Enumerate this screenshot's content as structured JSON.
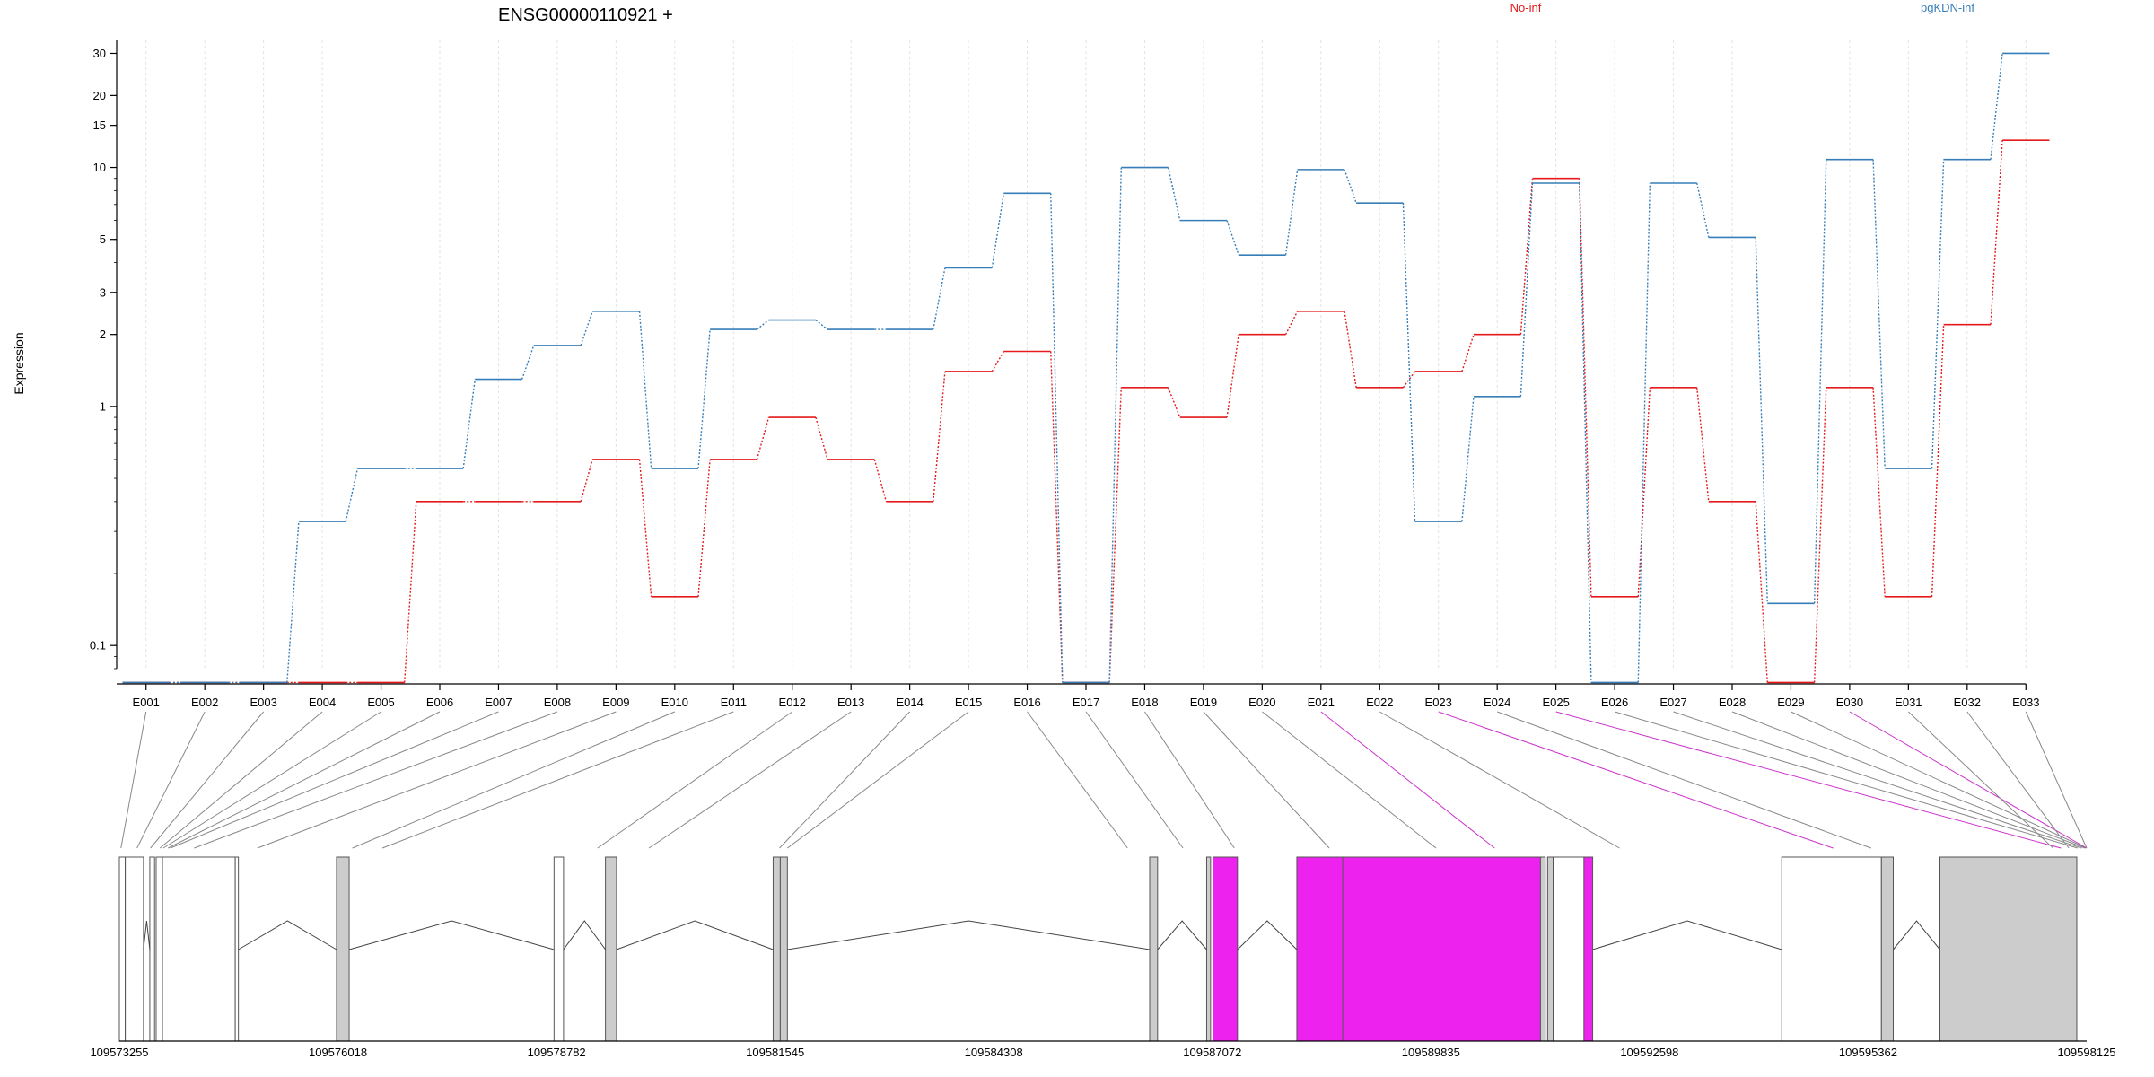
{
  "chart_data": {
    "type": "line",
    "title": "ENSG00000110921 +",
    "ylabel": "Expression",
    "xlabel": "",
    "yscale": "log",
    "ylim": [
      0.08,
      34
    ],
    "yticks": [
      {
        "value": 0.1,
        "label": "0.1"
      },
      {
        "value": 1,
        "label": "1"
      },
      {
        "value": 2,
        "label": "2"
      },
      {
        "value": 3,
        "label": "3"
      },
      {
        "value": 5,
        "label": "5"
      },
      {
        "value": 10,
        "label": "10"
      },
      {
        "value": 15,
        "label": "15"
      },
      {
        "value": 20,
        "label": "20"
      },
      {
        "value": 30,
        "label": "30"
      }
    ],
    "grid": true,
    "legend_position": "top",
    "categories": [
      "E001",
      "E002",
      "E003",
      "E004",
      "E005",
      "E006",
      "E007",
      "E008",
      "E009",
      "E010",
      "E011",
      "E012",
      "E013",
      "E014",
      "E015",
      "E016",
      "E017",
      "E018",
      "E019",
      "E020",
      "E021",
      "E022",
      "E023",
      "E024",
      "E025",
      "E026",
      "E027",
      "E028",
      "E029",
      "E030",
      "E031",
      "E032",
      "E033"
    ],
    "series": [
      {
        "name": "No-inf",
        "color": "#e41a1c",
        "values": [
          0.07,
          0.07,
          0.07,
          0.07,
          0.07,
          0.4,
          0.4,
          0.4,
          0.6,
          0.16,
          0.6,
          0.9,
          0.6,
          0.4,
          1.4,
          1.7,
          0.07,
          1.2,
          0.9,
          2.0,
          2.5,
          1.2,
          1.4,
          2.0,
          9.0,
          0.16,
          1.2,
          0.4,
          0.07,
          1.2,
          0.16,
          2.2,
          13.0
        ]
      },
      {
        "name": "pgKDN-inf",
        "color": "#377eb8",
        "values": [
          0.07,
          0.07,
          0.07,
          0.33,
          0.55,
          0.55,
          1.3,
          1.8,
          2.5,
          0.55,
          2.1,
          2.3,
          2.1,
          2.1,
          3.8,
          7.8,
          0.07,
          10.0,
          6.0,
          4.3,
          9.8,
          7.1,
          0.33,
          1.1,
          8.6,
          0.07,
          8.6,
          5.1,
          0.15,
          10.8,
          0.55,
          10.8,
          30.0
        ]
      }
    ],
    "gene_model": {
      "coordinate_ticks": [
        "109573255",
        "109576018",
        "109578782",
        "109581545",
        "109584308",
        "109587072",
        "109589835",
        "109592598",
        "109595362",
        "109598125"
      ],
      "exon_positions": [
        109573275,
        109573478,
        109573648,
        109573768,
        109573810,
        109573870,
        109573900,
        109574200,
        109575000,
        109576200,
        109576580,
        109579300,
        109579950,
        109581600,
        109581700,
        109586000,
        109586700,
        109587350,
        109588550,
        109589900,
        109590640,
        109592220,
        109594920,
        109595400,
        109597800,
        109598010,
        109598060,
        109598100,
        109598120,
        109598125,
        109597700,
        109597900,
        109598125
      ],
      "exon_highlight": [
        false,
        false,
        false,
        false,
        false,
        false,
        false,
        false,
        false,
        false,
        false,
        false,
        false,
        false,
        false,
        false,
        false,
        false,
        false,
        false,
        true,
        false,
        true,
        false,
        true,
        false,
        false,
        false,
        false,
        true,
        false,
        false,
        false
      ]
    }
  }
}
